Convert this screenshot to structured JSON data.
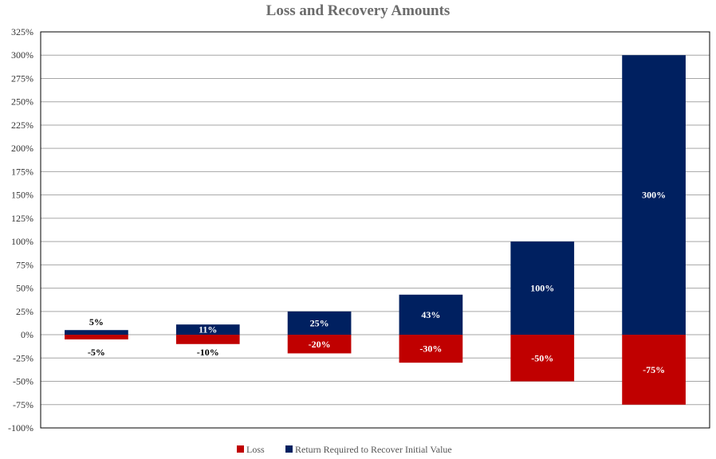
{
  "chart_data": {
    "type": "bar",
    "title": "Loss and Recovery Amounts",
    "xlabel": "",
    "ylabel": "",
    "ylim": [
      -100,
      325
    ],
    "ytick_step": 25,
    "ytick_labels": [
      "325%",
      "300%",
      "275%",
      "250%",
      "225%",
      "200%",
      "175%",
      "150%",
      "125%",
      "100%",
      "75%",
      "50%",
      "25%",
      "0%",
      "-25%",
      "-50%",
      "-75%",
      "-100%"
    ],
    "stacked": true,
    "grid": true,
    "legend_position": "bottom",
    "categories": [
      "",
      "",
      "",
      "",
      "",
      ""
    ],
    "series": [
      {
        "name": "Loss",
        "color": "#c00000",
        "values": [
          -5,
          -10,
          -20,
          -30,
          -50,
          -75
        ],
        "labels": [
          "-5%",
          "-10%",
          "-20%",
          "-30%",
          "-50%",
          "-75%"
        ]
      },
      {
        "name": "Return Required to Recover Initial Value",
        "color": "#002060",
        "values": [
          5,
          11,
          25,
          43,
          100,
          300
        ],
        "labels": [
          "5%",
          "11%",
          "25%",
          "43%",
          "100%",
          "300%"
        ]
      }
    ]
  }
}
